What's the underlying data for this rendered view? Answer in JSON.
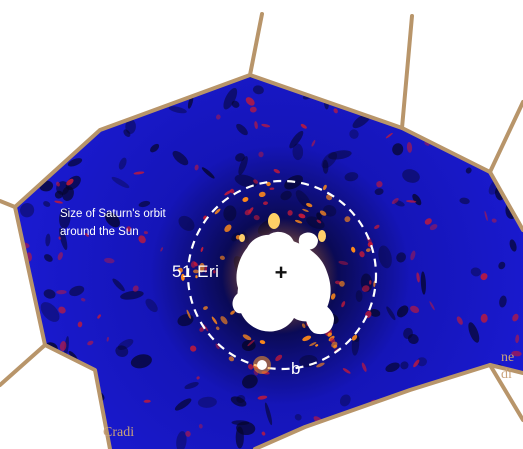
{
  "image": {
    "labels": {
      "orbit_line_1": "Size of Saturn's orbit",
      "orbit_line_2": "around the Sun",
      "star": "51 Eri",
      "star_marker": "+",
      "planet": "b"
    },
    "partial_text": {
      "right_line_1": "ne",
      "right_line_2": "di",
      "bottom": "Cradi"
    },
    "colors": {
      "background": "#ffffff",
      "cell_border": "#b8956a",
      "image_base": "#1414c8",
      "image_dark": "#05052a",
      "speckle_red": "#c01a3a",
      "speckle_orange": "#ff8a1a",
      "core": "#ffffff",
      "orbit_ring": "#ffffff"
    }
  }
}
